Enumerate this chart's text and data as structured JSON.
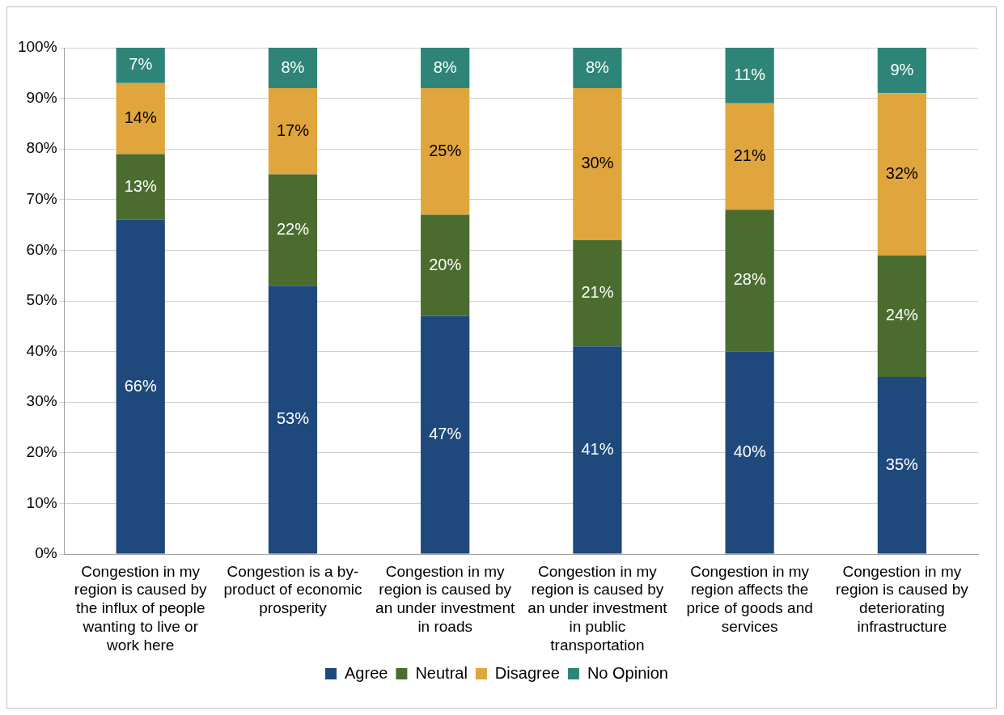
{
  "chart_data": {
    "type": "bar",
    "stacked": true,
    "categories": [
      "Congestion in my region is caused by the influx of people wanting to live or work here",
      "Congestion is a by-product of economic prosperity",
      "Congestion in my region is caused by an under investment in roads",
      "Congestion in my region is caused by an under investment in public transportation",
      "Congestion in my region affects the price of goods and services",
      "Congestion in my region is caused by deteriorating infrastructure"
    ],
    "series": [
      {
        "name": "Agree",
        "color": "#1f497d",
        "values": [
          66,
          53,
          47,
          41,
          40,
          35
        ],
        "value_labels": [
          "66%",
          "53%",
          "47%",
          "41%",
          "40%",
          "35%"
        ]
      },
      {
        "name": "Neutral",
        "color": "#4a6d2f",
        "values": [
          13,
          22,
          20,
          21,
          28,
          24
        ],
        "value_labels": [
          "13%",
          "22%",
          "20%",
          "21%",
          "28%",
          "24%"
        ]
      },
      {
        "name": "Disagree",
        "color": "#e0a53c",
        "values": [
          14,
          17,
          25,
          30,
          21,
          32
        ],
        "value_labels": [
          "14%",
          "17%",
          "25%",
          "30%",
          "21%",
          "32%"
        ]
      },
      {
        "name": "No Opinion",
        "color": "#2e8577",
        "values": [
          7,
          8,
          8,
          8,
          11,
          9
        ],
        "value_labels": [
          "7%",
          "8%",
          "8%",
          "8%",
          "11%",
          "9%"
        ]
      }
    ],
    "ylim": [
      0,
      100
    ],
    "yticks": [
      {
        "value": 0,
        "label": "0%"
      },
      {
        "value": 10,
        "label": "10%"
      },
      {
        "value": 20,
        "label": "20%"
      },
      {
        "value": 30,
        "label": "30%"
      },
      {
        "value": 40,
        "label": "40%"
      },
      {
        "value": 50,
        "label": "50%"
      },
      {
        "value": 60,
        "label": "60%"
      },
      {
        "value": 70,
        "label": "70%"
      },
      {
        "value": 80,
        "label": "80%"
      },
      {
        "value": 90,
        "label": "90%"
      },
      {
        "value": 100,
        "label": "100%"
      }
    ],
    "grid": "y",
    "legend": "bottom"
  }
}
